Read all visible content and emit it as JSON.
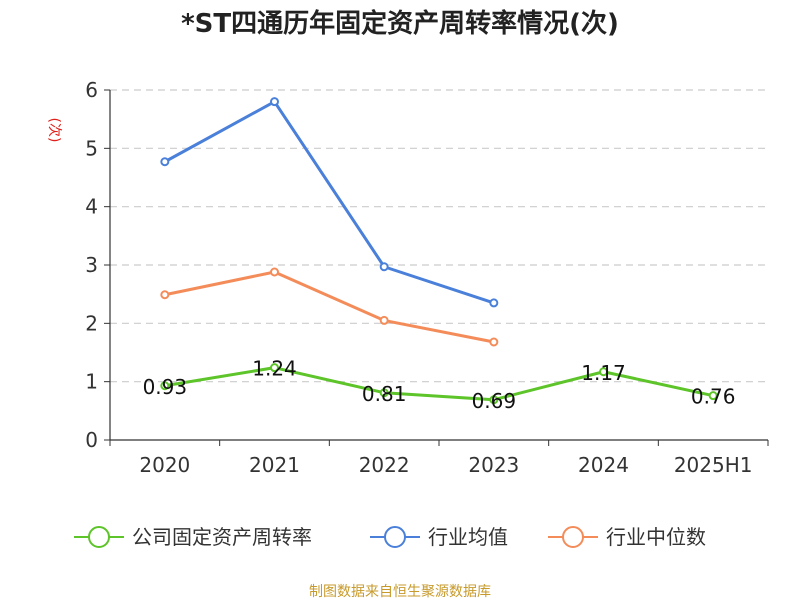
{
  "chart_data": {
    "type": "line",
    "title": "*ST四通历年固定资产周转率情况(次)",
    "ylabel": "(次)",
    "categories": [
      "2020",
      "2021",
      "2022",
      "2023",
      "2024",
      "2025H1"
    ],
    "ylim": [
      0,
      6
    ],
    "yticks": [
      "0",
      "1",
      "2",
      "3",
      "4",
      "5",
      "6"
    ],
    "grid": true,
    "legend_position": "bottom",
    "series": [
      {
        "name": "公司固定资产周转率",
        "color": "#5dc429",
        "values": [
          0.93,
          1.24,
          0.81,
          0.69,
          1.17,
          0.76
        ],
        "labels": [
          "0.93",
          "1.24",
          "0.81",
          "0.69",
          "1.17",
          "0.76"
        ]
      },
      {
        "name": "行业均值",
        "color": "#4a80d9",
        "values": [
          4.77,
          5.8,
          2.97,
          2.35,
          null,
          null
        ]
      },
      {
        "name": "行业中位数",
        "color": "#f48c5a",
        "values": [
          2.49,
          2.88,
          2.05,
          1.68,
          null,
          null
        ]
      }
    ],
    "source": "制图数据来自恒生聚源数据库"
  }
}
